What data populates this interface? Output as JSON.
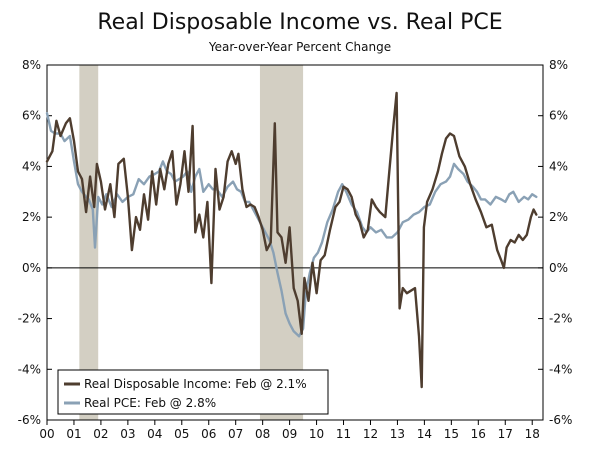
{
  "chart_data": {
    "type": "line",
    "title": "Real Disposable Income vs. Real PCE",
    "subtitle": "Year-over-Year Percent Change",
    "xlabel": "",
    "ylabel": "",
    "xlim": [
      2000.0,
      2018.4
    ],
    "ylim": [
      -6,
      8
    ],
    "y_ticks": [
      8,
      6,
      4,
      2,
      0,
      -2,
      -4,
      -6
    ],
    "y_tick_labels": [
      "8%",
      "6%",
      "4%",
      "2%",
      "0%",
      "-2%",
      "-4%",
      "-6%"
    ],
    "x_ticks": [
      2000,
      2001,
      2002,
      2003,
      2004,
      2005,
      2006,
      2007,
      2008,
      2009,
      2010,
      2011,
      2012,
      2013,
      2014,
      2015,
      2016,
      2017,
      2018
    ],
    "x_tick_labels": [
      "00",
      "01",
      "02",
      "03",
      "04",
      "05",
      "06",
      "07",
      "08",
      "09",
      "10",
      "11",
      "12",
      "13",
      "14",
      "15",
      "16",
      "17",
      "18"
    ],
    "recessions": [
      {
        "start": 2001.2,
        "end": 2001.9
      },
      {
        "start": 2007.9,
        "end": 2009.5
      }
    ],
    "zero_line": true,
    "legend_position": "bottom-left",
    "series": [
      {
        "name": "Real Disposable Income: Feb @ 2.1%",
        "color": "#4e3d2f",
        "points": [
          [
            2000.0,
            4.2
          ],
          [
            2000.2,
            4.6
          ],
          [
            2000.35,
            5.8
          ],
          [
            2000.5,
            5.2
          ],
          [
            2000.7,
            5.7
          ],
          [
            2000.85,
            5.9
          ],
          [
            2001.0,
            5.0
          ],
          [
            2001.15,
            3.8
          ],
          [
            2001.3,
            3.5
          ],
          [
            2001.45,
            2.2
          ],
          [
            2001.6,
            3.6
          ],
          [
            2001.75,
            2.4
          ],
          [
            2001.85,
            4.1
          ],
          [
            2002.0,
            3.4
          ],
          [
            2002.15,
            2.3
          ],
          [
            2002.35,
            3.3
          ],
          [
            2002.5,
            2.0
          ],
          [
            2002.65,
            4.1
          ],
          [
            2002.85,
            4.3
          ],
          [
            2003.0,
            2.8
          ],
          [
            2003.15,
            0.7
          ],
          [
            2003.3,
            2.0
          ],
          [
            2003.45,
            1.5
          ],
          [
            2003.6,
            2.9
          ],
          [
            2003.75,
            1.9
          ],
          [
            2003.9,
            3.8
          ],
          [
            2004.05,
            2.5
          ],
          [
            2004.2,
            3.9
          ],
          [
            2004.35,
            3.1
          ],
          [
            2004.5,
            4.1
          ],
          [
            2004.65,
            4.6
          ],
          [
            2004.8,
            2.5
          ],
          [
            2004.95,
            3.3
          ],
          [
            2005.1,
            4.6
          ],
          [
            2005.25,
            3.0
          ],
          [
            2005.4,
            5.6
          ],
          [
            2005.5,
            1.4
          ],
          [
            2005.65,
            2.1
          ],
          [
            2005.8,
            1.2
          ],
          [
            2005.95,
            2.6
          ],
          [
            2006.1,
            -0.6
          ],
          [
            2006.25,
            3.9
          ],
          [
            2006.4,
            2.3
          ],
          [
            2006.55,
            2.8
          ],
          [
            2006.7,
            4.2
          ],
          [
            2006.85,
            4.6
          ],
          [
            2007.0,
            4.1
          ],
          [
            2007.1,
            4.5
          ],
          [
            2007.25,
            3.1
          ],
          [
            2007.4,
            2.4
          ],
          [
            2007.55,
            2.5
          ],
          [
            2007.7,
            2.4
          ],
          [
            2007.85,
            2.0
          ],
          [
            2008.0,
            1.5
          ],
          [
            2008.15,
            0.7
          ],
          [
            2008.3,
            1.0
          ],
          [
            2008.45,
            5.7
          ],
          [
            2008.55,
            1.4
          ],
          [
            2008.7,
            1.2
          ],
          [
            2008.85,
            0.2
          ],
          [
            2009.0,
            1.6
          ],
          [
            2009.15,
            -0.8
          ],
          [
            2009.3,
            -1.3
          ],
          [
            2009.45,
            -2.6
          ],
          [
            2009.55,
            -0.4
          ],
          [
            2009.7,
            -1.3
          ],
          [
            2009.85,
            0.2
          ],
          [
            2010.0,
            -1.0
          ],
          [
            2010.15,
            0.3
          ],
          [
            2010.3,
            0.5
          ],
          [
            2010.5,
            1.5
          ],
          [
            2010.7,
            2.4
          ],
          [
            2010.85,
            2.6
          ],
          [
            2011.0,
            3.2
          ],
          [
            2011.15,
            3.1
          ],
          [
            2011.3,
            2.8
          ],
          [
            2011.45,
            2.1
          ],
          [
            2011.6,
            1.8
          ],
          [
            2011.75,
            1.2
          ],
          [
            2011.9,
            1.5
          ],
          [
            2012.05,
            2.7
          ],
          [
            2012.2,
            2.4
          ],
          [
            2012.35,
            2.2
          ],
          [
            2012.55,
            2.0
          ],
          [
            2012.7,
            3.8
          ],
          [
            2012.85,
            5.6
          ],
          [
            2012.97,
            6.9
          ],
          [
            2013.08,
            -1.6
          ],
          [
            2013.2,
            -0.8
          ],
          [
            2013.35,
            -1.0
          ],
          [
            2013.5,
            -0.9
          ],
          [
            2013.65,
            -0.8
          ],
          [
            2013.8,
            -2.7
          ],
          [
            2013.9,
            -4.7
          ],
          [
            2013.98,
            1.6
          ],
          [
            2014.1,
            2.6
          ],
          [
            2014.3,
            3.1
          ],
          [
            2014.5,
            3.8
          ],
          [
            2014.65,
            4.5
          ],
          [
            2014.8,
            5.1
          ],
          [
            2014.95,
            5.3
          ],
          [
            2015.1,
            5.2
          ],
          [
            2015.3,
            4.4
          ],
          [
            2015.5,
            4.0
          ],
          [
            2015.7,
            3.3
          ],
          [
            2015.9,
            2.7
          ],
          [
            2016.1,
            2.2
          ],
          [
            2016.3,
            1.6
          ],
          [
            2016.5,
            1.7
          ],
          [
            2016.7,
            0.7
          ],
          [
            2016.85,
            0.3
          ],
          [
            2016.95,
            0.0
          ],
          [
            2017.05,
            0.8
          ],
          [
            2017.2,
            1.1
          ],
          [
            2017.35,
            1.0
          ],
          [
            2017.5,
            1.3
          ],
          [
            2017.65,
            1.1
          ],
          [
            2017.8,
            1.3
          ],
          [
            2017.95,
            2.0
          ],
          [
            2018.05,
            2.3
          ],
          [
            2018.15,
            2.1
          ]
        ]
      },
      {
        "name": "Real PCE: Feb @ 2.8%",
        "color": "#8aa1b5",
        "points": [
          [
            2000.0,
            6.1
          ],
          [
            2000.15,
            5.4
          ],
          [
            2000.3,
            5.3
          ],
          [
            2000.5,
            5.3
          ],
          [
            2000.65,
            5.0
          ],
          [
            2000.85,
            5.2
          ],
          [
            2001.0,
            4.2
          ],
          [
            2001.15,
            3.3
          ],
          [
            2001.3,
            3.0
          ],
          [
            2001.45,
            2.8
          ],
          [
            2001.55,
            2.7
          ],
          [
            2001.7,
            2.3
          ],
          [
            2001.78,
            0.8
          ],
          [
            2001.9,
            2.8
          ],
          [
            2002.05,
            2.5
          ],
          [
            2002.2,
            2.9
          ],
          [
            2002.4,
            2.4
          ],
          [
            2002.6,
            2.9
          ],
          [
            2002.8,
            2.6
          ],
          [
            2003.0,
            2.8
          ],
          [
            2003.2,
            2.9
          ],
          [
            2003.4,
            3.5
          ],
          [
            2003.6,
            3.3
          ],
          [
            2003.8,
            3.6
          ],
          [
            2004.0,
            3.7
          ],
          [
            2004.15,
            3.8
          ],
          [
            2004.3,
            4.2
          ],
          [
            2004.45,
            3.8
          ],
          [
            2004.6,
            3.7
          ],
          [
            2004.75,
            3.4
          ],
          [
            2004.9,
            3.5
          ],
          [
            2005.05,
            3.6
          ],
          [
            2005.2,
            3.8
          ],
          [
            2005.35,
            3.0
          ],
          [
            2005.5,
            3.6
          ],
          [
            2005.65,
            3.9
          ],
          [
            2005.8,
            3.0
          ],
          [
            2006.0,
            3.3
          ],
          [
            2006.15,
            3.1
          ],
          [
            2006.3,
            3.1
          ],
          [
            2006.5,
            2.8
          ],
          [
            2006.7,
            3.2
          ],
          [
            2006.9,
            3.4
          ],
          [
            2007.05,
            3.1
          ],
          [
            2007.2,
            3.0
          ],
          [
            2007.35,
            2.6
          ],
          [
            2007.5,
            2.6
          ],
          [
            2007.7,
            2.2
          ],
          [
            2007.9,
            1.8
          ],
          [
            2008.05,
            1.5
          ],
          [
            2008.25,
            1.1
          ],
          [
            2008.4,
            0.6
          ],
          [
            2008.55,
            -0.2
          ],
          [
            2008.7,
            -0.9
          ],
          [
            2008.85,
            -1.8
          ],
          [
            2009.0,
            -2.2
          ],
          [
            2009.15,
            -2.5
          ],
          [
            2009.35,
            -2.7
          ],
          [
            2009.5,
            -2.4
          ],
          [
            2009.6,
            -1.0
          ],
          [
            2009.75,
            -0.2
          ],
          [
            2009.9,
            0.4
          ],
          [
            2010.05,
            0.6
          ],
          [
            2010.2,
            1.0
          ],
          [
            2010.4,
            1.8
          ],
          [
            2010.6,
            2.3
          ],
          [
            2010.8,
            3.0
          ],
          [
            2010.95,
            3.3
          ],
          [
            2011.1,
            3.0
          ],
          [
            2011.3,
            2.5
          ],
          [
            2011.5,
            2.2
          ],
          [
            2011.7,
            1.6
          ],
          [
            2011.85,
            1.4
          ],
          [
            2012.0,
            1.6
          ],
          [
            2012.2,
            1.4
          ],
          [
            2012.4,
            1.5
          ],
          [
            2012.6,
            1.2
          ],
          [
            2012.8,
            1.2
          ],
          [
            2013.0,
            1.4
          ],
          [
            2013.2,
            1.8
          ],
          [
            2013.4,
            1.9
          ],
          [
            2013.6,
            2.1
          ],
          [
            2013.8,
            2.2
          ],
          [
            2014.0,
            2.4
          ],
          [
            2014.2,
            2.5
          ],
          [
            2014.4,
            3.0
          ],
          [
            2014.6,
            3.3
          ],
          [
            2014.8,
            3.4
          ],
          [
            2014.95,
            3.6
          ],
          [
            2015.1,
            4.1
          ],
          [
            2015.25,
            3.9
          ],
          [
            2015.45,
            3.7
          ],
          [
            2015.6,
            3.4
          ],
          [
            2015.8,
            3.2
          ],
          [
            2015.95,
            3.0
          ],
          [
            2016.1,
            2.7
          ],
          [
            2016.25,
            2.7
          ],
          [
            2016.45,
            2.5
          ],
          [
            2016.65,
            2.8
          ],
          [
            2016.85,
            2.7
          ],
          [
            2017.0,
            2.6
          ],
          [
            2017.15,
            2.9
          ],
          [
            2017.3,
            3.0
          ],
          [
            2017.5,
            2.6
          ],
          [
            2017.7,
            2.8
          ],
          [
            2017.85,
            2.7
          ],
          [
            2018.0,
            2.9
          ],
          [
            2018.15,
            2.8
          ]
        ]
      }
    ]
  }
}
